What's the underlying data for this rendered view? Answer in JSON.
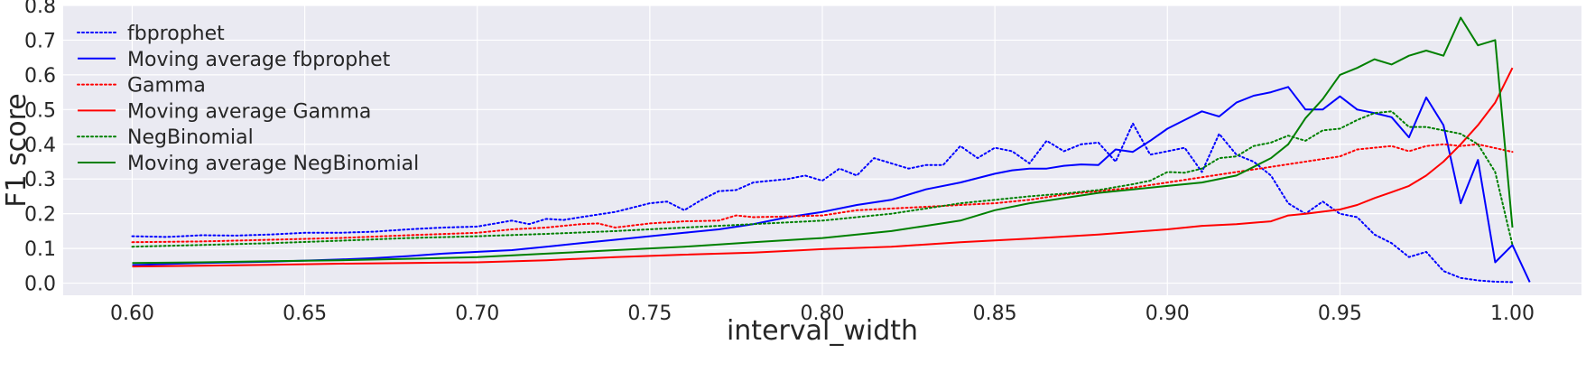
{
  "chart_data": {
    "type": "line",
    "title": "",
    "xlabel": "interval_width",
    "ylabel": "F1 score",
    "xlim": [
      0.58,
      1.02
    ],
    "ylim": [
      -0.035,
      0.8
    ],
    "x_ticks": [
      0.6,
      0.65,
      0.7,
      0.75,
      0.8,
      0.85,
      0.9,
      0.95,
      1.0
    ],
    "x_tick_labels": [
      "0.60",
      "0.65",
      "0.70",
      "0.75",
      "0.80",
      "0.85",
      "0.90",
      "0.95",
      "1.00"
    ],
    "y_ticks": [
      0.0,
      0.1,
      0.2,
      0.3,
      0.4,
      0.5,
      0.6,
      0.7,
      0.8
    ],
    "y_tick_labels": [
      "0.0",
      "0.1",
      "0.2",
      "0.3",
      "0.4",
      "0.5",
      "0.6",
      "0.7",
      "0.8"
    ],
    "grid": true,
    "legend_position": "upper-left",
    "background": "#eaeaf2",
    "series": [
      {
        "name": "fbprophet",
        "color": "#0000ff",
        "style": "dotted",
        "points": [
          [
            0.6,
            0.135
          ],
          [
            0.61,
            0.133
          ],
          [
            0.62,
            0.138
          ],
          [
            0.63,
            0.137
          ],
          [
            0.64,
            0.14
          ],
          [
            0.65,
            0.145
          ],
          [
            0.66,
            0.145
          ],
          [
            0.67,
            0.148
          ],
          [
            0.68,
            0.155
          ],
          [
            0.69,
            0.16
          ],
          [
            0.7,
            0.163
          ],
          [
            0.71,
            0.18
          ],
          [
            0.715,
            0.17
          ],
          [
            0.72,
            0.185
          ],
          [
            0.725,
            0.182
          ],
          [
            0.73,
            0.19
          ],
          [
            0.74,
            0.205
          ],
          [
            0.75,
            0.23
          ],
          [
            0.755,
            0.235
          ],
          [
            0.76,
            0.21
          ],
          [
            0.765,
            0.24
          ],
          [
            0.77,
            0.265
          ],
          [
            0.775,
            0.268
          ],
          [
            0.78,
            0.29
          ],
          [
            0.79,
            0.3
          ],
          [
            0.795,
            0.31
          ],
          [
            0.8,
            0.295
          ],
          [
            0.805,
            0.33
          ],
          [
            0.81,
            0.31
          ],
          [
            0.815,
            0.36
          ],
          [
            0.82,
            0.345
          ],
          [
            0.825,
            0.33
          ],
          [
            0.83,
            0.34
          ],
          [
            0.835,
            0.34
          ],
          [
            0.84,
            0.395
          ],
          [
            0.845,
            0.36
          ],
          [
            0.85,
            0.39
          ],
          [
            0.855,
            0.38
          ],
          [
            0.86,
            0.345
          ],
          [
            0.865,
            0.41
          ],
          [
            0.87,
            0.38
          ],
          [
            0.875,
            0.4
          ],
          [
            0.88,
            0.405
          ],
          [
            0.885,
            0.35
          ],
          [
            0.89,
            0.46
          ],
          [
            0.895,
            0.37
          ],
          [
            0.9,
            0.38
          ],
          [
            0.905,
            0.39
          ],
          [
            0.91,
            0.32
          ],
          [
            0.915,
            0.43
          ],
          [
            0.92,
            0.37
          ],
          [
            0.925,
            0.35
          ],
          [
            0.93,
            0.31
          ],
          [
            0.935,
            0.23
          ],
          [
            0.94,
            0.2
          ],
          [
            0.945,
            0.235
          ],
          [
            0.95,
            0.2
          ],
          [
            0.955,
            0.19
          ],
          [
            0.96,
            0.14
          ],
          [
            0.965,
            0.115
          ],
          [
            0.97,
            0.075
          ],
          [
            0.975,
            0.09
          ],
          [
            0.98,
            0.035
          ],
          [
            0.985,
            0.015
          ],
          [
            0.99,
            0.008
          ],
          [
            0.995,
            0.004
          ],
          [
            1.0,
            0.003
          ]
        ]
      },
      {
        "name": "Moving average fbprophet",
        "color": "#0000ff",
        "style": "solid",
        "points": [
          [
            0.6,
            0.052
          ],
          [
            0.61,
            0.055
          ],
          [
            0.62,
            0.058
          ],
          [
            0.63,
            0.06
          ],
          [
            0.64,
            0.062
          ],
          [
            0.65,
            0.065
          ],
          [
            0.66,
            0.068
          ],
          [
            0.67,
            0.072
          ],
          [
            0.68,
            0.078
          ],
          [
            0.69,
            0.085
          ],
          [
            0.7,
            0.09
          ],
          [
            0.71,
            0.095
          ],
          [
            0.72,
            0.105
          ],
          [
            0.73,
            0.115
          ],
          [
            0.74,
            0.125
          ],
          [
            0.75,
            0.135
          ],
          [
            0.76,
            0.145
          ],
          [
            0.77,
            0.155
          ],
          [
            0.78,
            0.17
          ],
          [
            0.79,
            0.19
          ],
          [
            0.8,
            0.205
          ],
          [
            0.81,
            0.225
          ],
          [
            0.82,
            0.24
          ],
          [
            0.83,
            0.27
          ],
          [
            0.84,
            0.29
          ],
          [
            0.85,
            0.315
          ],
          [
            0.855,
            0.325
          ],
          [
            0.86,
            0.33
          ],
          [
            0.865,
            0.33
          ],
          [
            0.87,
            0.338
          ],
          [
            0.875,
            0.342
          ],
          [
            0.88,
            0.34
          ],
          [
            0.885,
            0.385
          ],
          [
            0.89,
            0.378
          ],
          [
            0.895,
            0.41
          ],
          [
            0.9,
            0.445
          ],
          [
            0.905,
            0.47
          ],
          [
            0.91,
            0.495
          ],
          [
            0.915,
            0.48
          ],
          [
            0.92,
            0.52
          ],
          [
            0.925,
            0.54
          ],
          [
            0.93,
            0.55
          ],
          [
            0.935,
            0.565
          ],
          [
            0.94,
            0.5
          ],
          [
            0.945,
            0.5
          ],
          [
            0.95,
            0.538
          ],
          [
            0.955,
            0.5
          ],
          [
            0.96,
            0.49
          ],
          [
            0.965,
            0.478
          ],
          [
            0.97,
            0.42
          ],
          [
            0.975,
            0.535
          ],
          [
            0.98,
            0.455
          ],
          [
            0.985,
            0.23
          ],
          [
            0.99,
            0.355
          ],
          [
            0.995,
            0.06
          ],
          [
            1.0,
            0.11
          ],
          [
            1.005,
            0.003
          ]
        ]
      },
      {
        "name": "Gamma",
        "color": "#ff0000",
        "style": "dotted",
        "points": [
          [
            0.6,
            0.118
          ],
          [
            0.62,
            0.12
          ],
          [
            0.64,
            0.125
          ],
          [
            0.66,
            0.13
          ],
          [
            0.68,
            0.138
          ],
          [
            0.7,
            0.145
          ],
          [
            0.71,
            0.155
          ],
          [
            0.72,
            0.16
          ],
          [
            0.73,
            0.17
          ],
          [
            0.735,
            0.172
          ],
          [
            0.74,
            0.16
          ],
          [
            0.75,
            0.172
          ],
          [
            0.76,
            0.178
          ],
          [
            0.77,
            0.18
          ],
          [
            0.775,
            0.195
          ],
          [
            0.78,
            0.19
          ],
          [
            0.79,
            0.192
          ],
          [
            0.8,
            0.195
          ],
          [
            0.81,
            0.21
          ],
          [
            0.82,
            0.215
          ],
          [
            0.83,
            0.22
          ],
          [
            0.84,
            0.225
          ],
          [
            0.85,
            0.23
          ],
          [
            0.86,
            0.24
          ],
          [
            0.87,
            0.255
          ],
          [
            0.88,
            0.265
          ],
          [
            0.89,
            0.275
          ],
          [
            0.9,
            0.29
          ],
          [
            0.91,
            0.305
          ],
          [
            0.92,
            0.32
          ],
          [
            0.93,
            0.335
          ],
          [
            0.94,
            0.35
          ],
          [
            0.95,
            0.365
          ],
          [
            0.955,
            0.385
          ],
          [
            0.96,
            0.39
          ],
          [
            0.965,
            0.395
          ],
          [
            0.97,
            0.38
          ],
          [
            0.975,
            0.395
          ],
          [
            0.98,
            0.4
          ],
          [
            0.985,
            0.395
          ],
          [
            0.99,
            0.4
          ],
          [
            1.0,
            0.378
          ]
        ]
      },
      {
        "name": "Moving average Gamma",
        "color": "#ff0000",
        "style": "solid",
        "points": [
          [
            0.6,
            0.048
          ],
          [
            0.62,
            0.05
          ],
          [
            0.64,
            0.053
          ],
          [
            0.66,
            0.056
          ],
          [
            0.68,
            0.058
          ],
          [
            0.7,
            0.06
          ],
          [
            0.72,
            0.066
          ],
          [
            0.74,
            0.075
          ],
          [
            0.76,
            0.082
          ],
          [
            0.78,
            0.088
          ],
          [
            0.8,
            0.098
          ],
          [
            0.82,
            0.105
          ],
          [
            0.84,
            0.118
          ],
          [
            0.86,
            0.128
          ],
          [
            0.88,
            0.14
          ],
          [
            0.9,
            0.155
          ],
          [
            0.91,
            0.165
          ],
          [
            0.92,
            0.17
          ],
          [
            0.93,
            0.178
          ],
          [
            0.935,
            0.195
          ],
          [
            0.94,
            0.2
          ],
          [
            0.95,
            0.212
          ],
          [
            0.955,
            0.225
          ],
          [
            0.96,
            0.245
          ],
          [
            0.965,
            0.262
          ],
          [
            0.97,
            0.28
          ],
          [
            0.975,
            0.31
          ],
          [
            0.98,
            0.35
          ],
          [
            0.985,
            0.4
          ],
          [
            0.99,
            0.455
          ],
          [
            0.995,
            0.52
          ],
          [
            1.0,
            0.62
          ]
        ]
      },
      {
        "name": "NegBinomial",
        "color": "#008000",
        "style": "dotted",
        "points": [
          [
            0.6,
            0.105
          ],
          [
            0.62,
            0.11
          ],
          [
            0.64,
            0.115
          ],
          [
            0.66,
            0.122
          ],
          [
            0.68,
            0.13
          ],
          [
            0.7,
            0.135
          ],
          [
            0.72,
            0.142
          ],
          [
            0.74,
            0.15
          ],
          [
            0.76,
            0.16
          ],
          [
            0.78,
            0.17
          ],
          [
            0.8,
            0.18
          ],
          [
            0.82,
            0.2
          ],
          [
            0.83,
            0.215
          ],
          [
            0.84,
            0.23
          ],
          [
            0.845,
            0.235
          ],
          [
            0.85,
            0.24
          ],
          [
            0.86,
            0.25
          ],
          [
            0.87,
            0.258
          ],
          [
            0.88,
            0.268
          ],
          [
            0.89,
            0.285
          ],
          [
            0.895,
            0.295
          ],
          [
            0.9,
            0.32
          ],
          [
            0.905,
            0.318
          ],
          [
            0.91,
            0.33
          ],
          [
            0.915,
            0.36
          ],
          [
            0.92,
            0.365
          ],
          [
            0.925,
            0.395
          ],
          [
            0.93,
            0.405
          ],
          [
            0.935,
            0.425
          ],
          [
            0.94,
            0.41
          ],
          [
            0.945,
            0.44
          ],
          [
            0.95,
            0.445
          ],
          [
            0.955,
            0.47
          ],
          [
            0.96,
            0.49
          ],
          [
            0.965,
            0.495
          ],
          [
            0.97,
            0.45
          ],
          [
            0.975,
            0.45
          ],
          [
            0.98,
            0.44
          ],
          [
            0.985,
            0.43
          ],
          [
            0.99,
            0.4
          ],
          [
            0.995,
            0.32
          ],
          [
            1.0,
            0.11
          ]
        ]
      },
      {
        "name": "Moving average NegBinomial",
        "color": "#008000",
        "style": "solid",
        "points": [
          [
            0.6,
            0.058
          ],
          [
            0.62,
            0.06
          ],
          [
            0.64,
            0.063
          ],
          [
            0.66,
            0.066
          ],
          [
            0.68,
            0.07
          ],
          [
            0.7,
            0.075
          ],
          [
            0.72,
            0.085
          ],
          [
            0.74,
            0.095
          ],
          [
            0.76,
            0.105
          ],
          [
            0.78,
            0.118
          ],
          [
            0.8,
            0.13
          ],
          [
            0.82,
            0.15
          ],
          [
            0.83,
            0.165
          ],
          [
            0.84,
            0.18
          ],
          [
            0.85,
            0.21
          ],
          [
            0.86,
            0.23
          ],
          [
            0.87,
            0.245
          ],
          [
            0.88,
            0.26
          ],
          [
            0.89,
            0.27
          ],
          [
            0.9,
            0.28
          ],
          [
            0.91,
            0.29
          ],
          [
            0.92,
            0.31
          ],
          [
            0.925,
            0.335
          ],
          [
            0.93,
            0.36
          ],
          [
            0.935,
            0.4
          ],
          [
            0.94,
            0.475
          ],
          [
            0.945,
            0.53
          ],
          [
            0.95,
            0.6
          ],
          [
            0.955,
            0.62
          ],
          [
            0.96,
            0.645
          ],
          [
            0.965,
            0.63
          ],
          [
            0.97,
            0.655
          ],
          [
            0.975,
            0.67
          ],
          [
            0.98,
            0.655
          ],
          [
            0.985,
            0.765
          ],
          [
            0.99,
            0.685
          ],
          [
            0.995,
            0.7
          ],
          [
            1.0,
            0.16
          ]
        ]
      }
    ]
  }
}
